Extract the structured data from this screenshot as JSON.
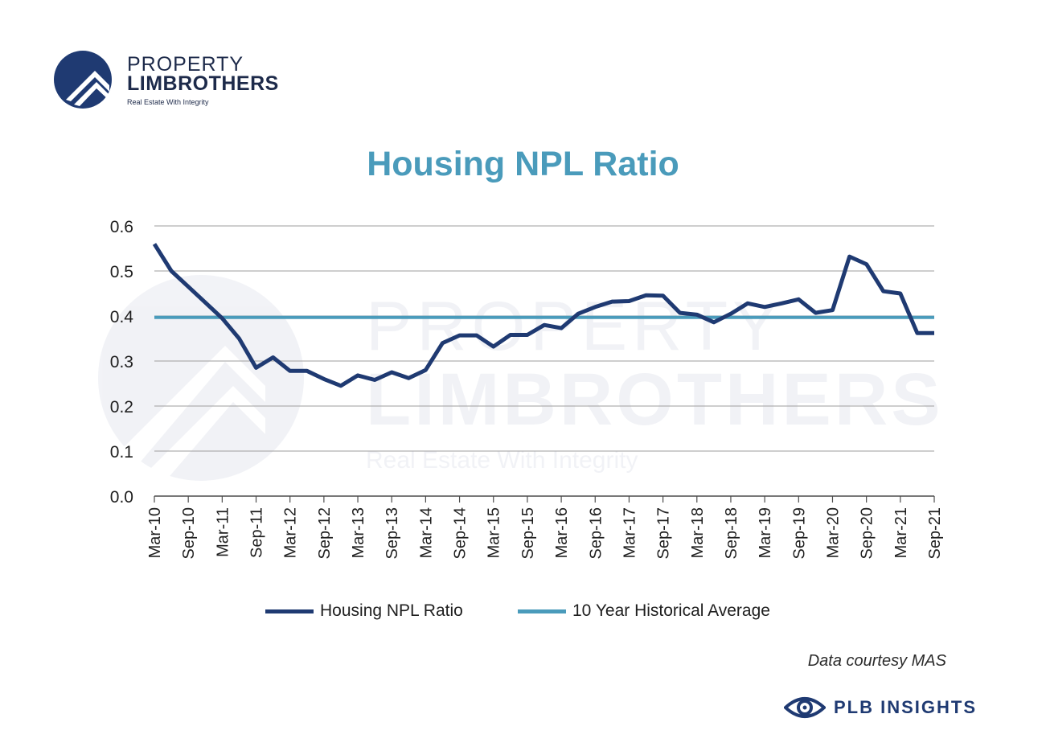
{
  "logo": {
    "line1": "PROPERTY",
    "line2": "LIMBROTHERS",
    "tagline": "Real Estate With Integrity"
  },
  "colors": {
    "npl_line": "#1f3a72",
    "average_line": "#4a9bbb",
    "title": "#4a9bbb",
    "grid": "#9e9e9e"
  },
  "chart_data": {
    "type": "line",
    "title": "Housing NPL Ratio",
    "xlabel": "",
    "ylabel": "",
    "ylim": [
      0,
      0.6
    ],
    "yticks": [
      "0.0",
      "0.1",
      "0.2",
      "0.3",
      "0.4",
      "0.5",
      "0.6"
    ],
    "grid": "horizontal",
    "legend_position": "bottom",
    "x": [
      "Mar-10",
      "Jun-10",
      "Sep-10",
      "Dec-10",
      "Mar-11",
      "Jun-11",
      "Sep-11",
      "Dec-11",
      "Mar-12",
      "Jun-12",
      "Sep-12",
      "Dec-12",
      "Mar-13",
      "Jun-13",
      "Sep-13",
      "Dec-13",
      "Mar-14",
      "Jun-14",
      "Sep-14",
      "Dec-14",
      "Mar-15",
      "Jun-15",
      "Sep-15",
      "Dec-15",
      "Mar-16",
      "Jun-16",
      "Sep-16",
      "Dec-16",
      "Mar-17",
      "Jun-17",
      "Sep-17",
      "Dec-17",
      "Mar-18",
      "Jun-18",
      "Sep-18",
      "Dec-18",
      "Mar-19",
      "Jun-19",
      "Sep-19",
      "Dec-19",
      "Mar-20",
      "Jun-20",
      "Sep-20",
      "Dec-20",
      "Mar-21",
      "Jun-21",
      "Sep-21"
    ],
    "x_tick_labels": [
      "Mar-10",
      "Sep-10",
      "Mar-11",
      "Sep-11",
      "Mar-12",
      "Sep-12",
      "Mar-13",
      "Sep-13",
      "Mar-14",
      "Sep-14",
      "Mar-15",
      "Sep-15",
      "Mar-16",
      "Sep-16",
      "Mar-17",
      "Sep-17",
      "Mar-18",
      "Sep-18",
      "Mar-19",
      "Sep-19",
      "Mar-20",
      "Sep-20",
      "Mar-21",
      "Sep-21"
    ],
    "series": [
      {
        "name": "Housing NPL Ratio",
        "values": [
          0.56,
          0.5,
          0.465,
          0.43,
          0.395,
          0.35,
          0.285,
          0.308,
          0.278,
          0.278,
          0.26,
          0.245,
          0.268,
          0.258,
          0.275,
          0.262,
          0.28,
          0.34,
          0.357,
          0.357,
          0.332,
          0.358,
          0.358,
          0.38,
          0.373,
          0.405,
          0.42,
          0.432,
          0.433,
          0.446,
          0.445,
          0.407,
          0.403,
          0.386,
          0.405,
          0.428,
          0.42,
          0.428,
          0.437,
          0.407,
          0.413,
          0.532,
          0.515,
          0.455,
          0.45,
          0.362,
          0.362
        ]
      },
      {
        "name": "10 Year Historical Average",
        "values": [
          0.397,
          0.397,
          0.397,
          0.397,
          0.397,
          0.397,
          0.397,
          0.397,
          0.397,
          0.397,
          0.397,
          0.397,
          0.397,
          0.397,
          0.397,
          0.397,
          0.397,
          0.397,
          0.397,
          0.397,
          0.397,
          0.397,
          0.397,
          0.397,
          0.397,
          0.397,
          0.397,
          0.397,
          0.397,
          0.397,
          0.397,
          0.397,
          0.397,
          0.397,
          0.397,
          0.397,
          0.397,
          0.397,
          0.397,
          0.397,
          0.397,
          0.397,
          0.397,
          0.397,
          0.397,
          0.397,
          0.397
        ]
      }
    ]
  },
  "source": "Data courtesy MAS",
  "brand": {
    "icon": "eye-icon",
    "label": "PLB INSIGHTS"
  }
}
